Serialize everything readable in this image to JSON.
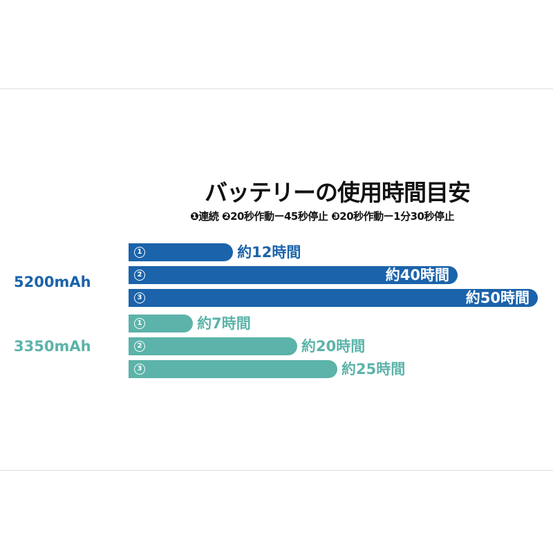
{
  "chart_data": {
    "type": "bar",
    "orientation": "horizontal",
    "title": "バッテリーの使用時間目安",
    "subtitle": "❶連続 ❷20秒作動ー45秒停止 ❸20秒作動ー1分30秒停止",
    "unit": "時間",
    "categories": [
      "1",
      "2",
      "3"
    ],
    "series": [
      {
        "name": "5200mAh",
        "color": "#1b63ab",
        "values": [
          12,
          40,
          50
        ],
        "labels": [
          "約12時間",
          "約40時間",
          "約50時間"
        ]
      },
      {
        "name": "3350mAh",
        "color": "#5bb3a9",
        "values": [
          7,
          20,
          25
        ],
        "labels": [
          "約7時間",
          "約20時間",
          "約25時間"
        ]
      }
    ],
    "grid": false
  }
}
